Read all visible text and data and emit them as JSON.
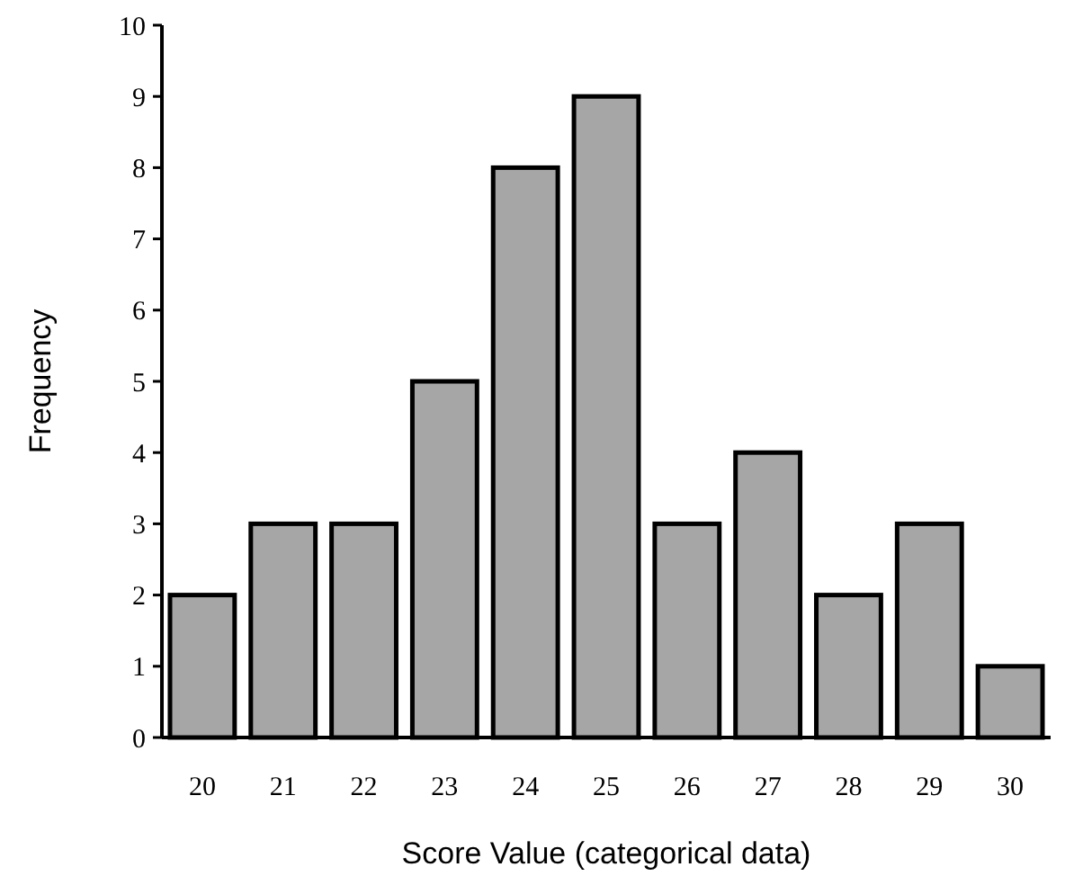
{
  "chart_data": {
    "type": "bar",
    "xlabel": "Score Value (categorical data)",
    "ylabel": "Frequency",
    "categories": [
      "20",
      "21",
      "22",
      "23",
      "24",
      "25",
      "26",
      "27",
      "28",
      "29",
      "30"
    ],
    "values": [
      2,
      3,
      3,
      5,
      8,
      9,
      3,
      4,
      2,
      3,
      1
    ],
    "color": "#a6a6a6",
    "ylim": [
      0,
      10
    ],
    "yticks": [
      0,
      1,
      2,
      3,
      4,
      5,
      6,
      7,
      8,
      9,
      10
    ],
    "grid": false
  }
}
